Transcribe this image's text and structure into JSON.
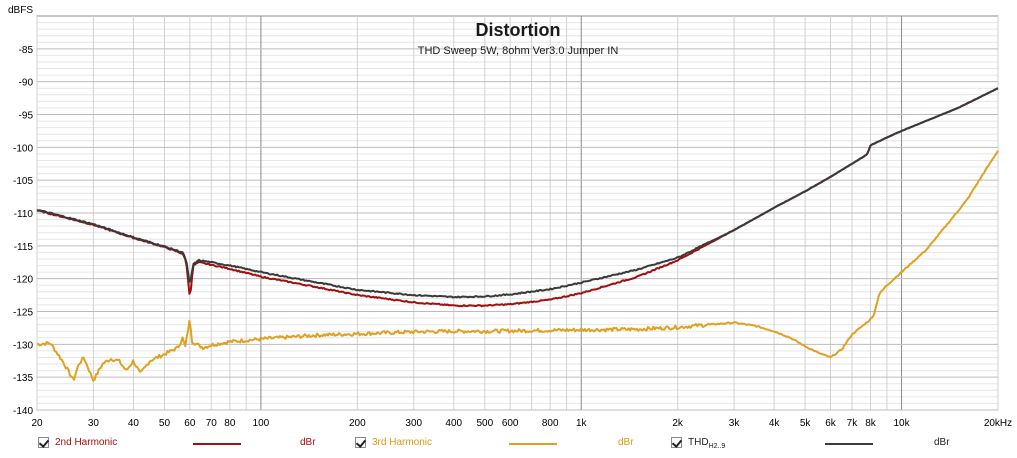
{
  "chart_data": {
    "type": "line",
    "title": "Distortion",
    "subtitle": "THD Sweep 5W, 8ohm Ver3.0 Jumper IN",
    "ylabel": "dBFS",
    "xlabel": "",
    "xscale": "log",
    "xlim": [
      20,
      20000
    ],
    "ylim": [
      -140,
      -80
    ],
    "yticks": [
      -140,
      -135,
      -130,
      -125,
      -120,
      -115,
      -110,
      -105,
      -100,
      -95,
      -90,
      -85
    ],
    "ytick_labels": [
      "-140",
      "-135",
      "-130",
      "-125",
      "-120",
      "-115",
      "-110",
      "-105",
      "-100",
      "-95",
      "-90",
      "-85"
    ],
    "xtick_labels": [
      {
        "v": 20,
        "t": "20"
      },
      {
        "v": 30,
        "t": "30"
      },
      {
        "v": 40,
        "t": "40"
      },
      {
        "v": 50,
        "t": "50"
      },
      {
        "v": 60,
        "t": "60"
      },
      {
        "v": 70,
        "t": "70"
      },
      {
        "v": 80,
        "t": "80"
      },
      {
        "v": 100,
        "t": "100"
      },
      {
        "v": 200,
        "t": "200"
      },
      {
        "v": 300,
        "t": "300"
      },
      {
        "v": 400,
        "t": "400"
      },
      {
        "v": 500,
        "t": "500"
      },
      {
        "v": 600,
        "t": "600"
      },
      {
        "v": 800,
        "t": "800"
      },
      {
        "v": 1000,
        "t": "1k"
      },
      {
        "v": 2000,
        "t": "2k"
      },
      {
        "v": 3000,
        "t": "3k"
      },
      {
        "v": 4000,
        "t": "4k"
      },
      {
        "v": 5000,
        "t": "5k"
      },
      {
        "v": 6000,
        "t": "6k"
      },
      {
        "v": 7000,
        "t": "7k"
      },
      {
        "v": 8000,
        "t": "8k"
      },
      {
        "v": 10000,
        "t": "10k"
      },
      {
        "v": 20000,
        "t": "20kHz"
      }
    ],
    "grid": true,
    "series": [
      {
        "name": "2nd Harmonic",
        "color": "#a01010",
        "points": [
          [
            20,
            -109.6
          ],
          [
            30,
            -111.8
          ],
          [
            40,
            -113.8
          ],
          [
            50,
            -115.2
          ],
          [
            57,
            -116.2
          ],
          [
            58.5,
            -117.5
          ],
          [
            60,
            -123
          ],
          [
            61.5,
            -118
          ],
          [
            64,
            -117.5
          ],
          [
            70,
            -117.9
          ],
          [
            80,
            -118.5
          ],
          [
            100,
            -119.7
          ],
          [
            150,
            -121.3
          ],
          [
            200,
            -122.5
          ],
          [
            300,
            -123.6
          ],
          [
            400,
            -124.1
          ],
          [
            500,
            -124.1
          ],
          [
            600,
            -123.9
          ],
          [
            800,
            -123.2
          ],
          [
            1000,
            -122.2
          ],
          [
            1500,
            -119.7
          ],
          [
            2000,
            -117.2
          ],
          [
            3000,
            -112.6
          ],
          [
            4000,
            -109.2
          ],
          [
            5000,
            -106.7
          ],
          [
            6000,
            -104.5
          ],
          [
            7000,
            -102.5
          ],
          [
            7800,
            -101.1
          ],
          [
            8000,
            -99.7
          ],
          [
            9000,
            -98.5
          ],
          [
            10000,
            -97.5
          ],
          [
            15000,
            -94
          ],
          [
            20000,
            -91
          ]
        ]
      },
      {
        "name": "3rd Harmonic",
        "color": "#e0a020",
        "points": [
          [
            20,
            -130
          ],
          [
            22,
            -129.8
          ],
          [
            24,
            -132.5
          ],
          [
            25,
            -134
          ],
          [
            26,
            -135.5
          ],
          [
            27,
            -133
          ],
          [
            28,
            -132
          ],
          [
            30,
            -135.5
          ],
          [
            32,
            -133
          ],
          [
            34,
            -132.2
          ],
          [
            36,
            -132.5
          ],
          [
            38,
            -134
          ],
          [
            40,
            -132.5
          ],
          [
            42,
            -134.5
          ],
          [
            45,
            -132.5
          ],
          [
            50,
            -131.5
          ],
          [
            55,
            -130.5
          ],
          [
            57,
            -129
          ],
          [
            58,
            -130.5
          ],
          [
            60,
            -126.2
          ],
          [
            61,
            -129.5
          ],
          [
            63,
            -130
          ],
          [
            66,
            -130.5
          ],
          [
            70,
            -130.1
          ],
          [
            80,
            -129.6
          ],
          [
            100,
            -129.2
          ],
          [
            150,
            -128.6
          ],
          [
            200,
            -128.4
          ],
          [
            300,
            -128.1
          ],
          [
            400,
            -128
          ],
          [
            500,
            -128
          ],
          [
            700,
            -127.9
          ],
          [
            1000,
            -127.8
          ],
          [
            1500,
            -127.7
          ],
          [
            2000,
            -127.4
          ],
          [
            2500,
            -127
          ],
          [
            3000,
            -126.7
          ],
          [
            3500,
            -127.2
          ],
          [
            4000,
            -128
          ],
          [
            4500,
            -129
          ],
          [
            5000,
            -130.3
          ],
          [
            5500,
            -131.3
          ],
          [
            6000,
            -132
          ],
          [
            6500,
            -130.8
          ],
          [
            7000,
            -128.5
          ],
          [
            8000,
            -126.2
          ],
          [
            8200,
            -125.5
          ],
          [
            8500,
            -122.4
          ],
          [
            9000,
            -121
          ],
          [
            10000,
            -119
          ],
          [
            12000,
            -115.5
          ],
          [
            14000,
            -111.5
          ],
          [
            16000,
            -108
          ],
          [
            18000,
            -104
          ],
          [
            20000,
            -100.5
          ]
        ]
      },
      {
        "name": "THD H2..9",
        "color": "#3a3a3a",
        "points": [
          [
            20,
            -109.5
          ],
          [
            30,
            -111.7
          ],
          [
            40,
            -113.7
          ],
          [
            50,
            -115.1
          ],
          [
            57,
            -116
          ],
          [
            58.5,
            -117.3
          ],
          [
            60,
            -121
          ],
          [
            61.5,
            -117.8
          ],
          [
            64,
            -117.2
          ],
          [
            70,
            -117.5
          ],
          [
            80,
            -118
          ],
          [
            100,
            -119
          ],
          [
            150,
            -120.6
          ],
          [
            200,
            -121.7
          ],
          [
            300,
            -122.5
          ],
          [
            400,
            -122.8
          ],
          [
            500,
            -122.7
          ],
          [
            600,
            -122.4
          ],
          [
            800,
            -121.6
          ],
          [
            1000,
            -120.6
          ],
          [
            1500,
            -118.6
          ],
          [
            2000,
            -116.8
          ],
          [
            3000,
            -112.6
          ],
          [
            4000,
            -109.2
          ],
          [
            5000,
            -106.7
          ],
          [
            6000,
            -104.5
          ],
          [
            7000,
            -102.5
          ],
          [
            7800,
            -101.1
          ],
          [
            8000,
            -99.7
          ],
          [
            9000,
            -98.5
          ],
          [
            10000,
            -97.5
          ],
          [
            15000,
            -94
          ],
          [
            20000,
            -91
          ]
        ]
      }
    ]
  },
  "legend": {
    "items": [
      {
        "name": "2nd Harmonic",
        "unit": "dBr",
        "color": "#a01010"
      },
      {
        "name": "3rd Harmonic",
        "unit": "dBr",
        "color": "#e0a020"
      },
      {
        "name": "THD",
        "sub": "H2..9",
        "unit": "dBr",
        "color": "#3a3a3a"
      }
    ]
  }
}
